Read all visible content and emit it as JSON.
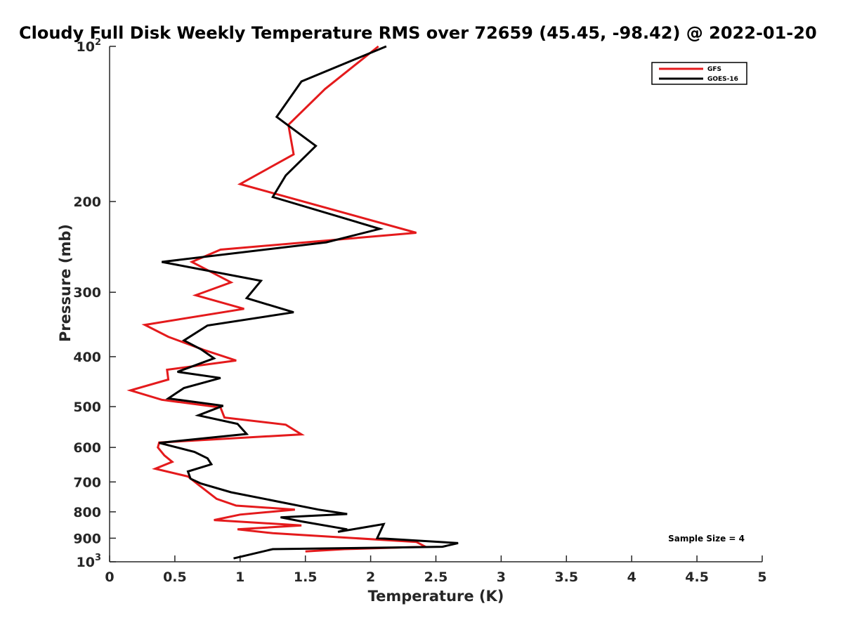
{
  "chart_data": {
    "type": "line",
    "title": "Cloudy Full Disk Weekly Temperature RMS over 72659 (45.45, -98.42) @ 2022-01-20",
    "xlabel": "Temperature (K)",
    "ylabel": "Pressure (mb)",
    "xlim": [
      0,
      5
    ],
    "ylim": [
      100,
      1000
    ],
    "y_scale": "log",
    "y_reversed": true,
    "grid": false,
    "legend_position": "top-right",
    "x_ticks": [
      "0",
      "0.5",
      "1",
      "1.5",
      "2",
      "2.5",
      "3",
      "3.5",
      "4",
      "4.5",
      "5"
    ],
    "x_tick_values": [
      0,
      0.5,
      1,
      1.5,
      2,
      2.5,
      3,
      3.5,
      4,
      4.5,
      5
    ],
    "y_ticks": [
      {
        "value": 100,
        "label": "10",
        "sup": "2"
      },
      {
        "value": 200,
        "label": "200",
        "sup": ""
      },
      {
        "value": 300,
        "label": "300",
        "sup": ""
      },
      {
        "value": 400,
        "label": "400",
        "sup": ""
      },
      {
        "value": 500,
        "label": "500",
        "sup": ""
      },
      {
        "value": 600,
        "label": "600",
        "sup": ""
      },
      {
        "value": 700,
        "label": "700",
        "sup": ""
      },
      {
        "value": 800,
        "label": "800",
        "sup": ""
      },
      {
        "value": 900,
        "label": "900",
        "sup": ""
      },
      {
        "value": 1000,
        "label": "10",
        "sup": "3"
      }
    ],
    "annotation": "Sample Size = 4",
    "series": [
      {
        "name": "GFS",
        "color": "#e41a1c",
        "points": [
          [
            2.06,
            100
          ],
          [
            1.65,
            121
          ],
          [
            1.37,
            142
          ],
          [
            1.41,
            162
          ],
          [
            1.0,
            185
          ],
          [
            2.35,
            230
          ],
          [
            0.85,
            248
          ],
          [
            0.63,
            262
          ],
          [
            0.93,
            287
          ],
          [
            0.66,
            304
          ],
          [
            1.03,
            323
          ],
          [
            0.27,
            347
          ],
          [
            0.45,
            366
          ],
          [
            0.72,
            388
          ],
          [
            0.97,
            407
          ],
          [
            0.44,
            424
          ],
          [
            0.45,
            443
          ],
          [
            0.16,
            465
          ],
          [
            0.4,
            485
          ],
          [
            0.85,
            502
          ],
          [
            0.88,
            525
          ],
          [
            1.35,
            542
          ],
          [
            1.47,
            566
          ],
          [
            0.38,
            587
          ],
          [
            0.37,
            600
          ],
          [
            0.42,
            622
          ],
          [
            0.48,
            640
          ],
          [
            0.35,
            660
          ],
          [
            0.6,
            683
          ],
          [
            0.69,
            712
          ],
          [
            0.82,
            755
          ],
          [
            0.97,
            778
          ],
          [
            1.42,
            792
          ],
          [
            1.0,
            810
          ],
          [
            0.8,
            830
          ],
          [
            1.47,
            850
          ],
          [
            0.98,
            865
          ],
          [
            1.25,
            880
          ],
          [
            2.35,
            915
          ],
          [
            2.42,
            935
          ],
          [
            1.8,
            945
          ],
          [
            1.5,
            955
          ]
        ]
      },
      {
        "name": "GOES-16",
        "color": "#000000",
        "points": [
          [
            2.12,
            100
          ],
          [
            1.47,
            117
          ],
          [
            1.28,
            137
          ],
          [
            1.58,
            156
          ],
          [
            1.35,
            178
          ],
          [
            1.25,
            196
          ],
          [
            2.07,
            226
          ],
          [
            1.66,
            240
          ],
          [
            0.4,
            262
          ],
          [
            1.16,
            285
          ],
          [
            1.05,
            308
          ],
          [
            1.41,
            328
          ],
          [
            0.75,
            348
          ],
          [
            0.57,
            372
          ],
          [
            0.7,
            387
          ],
          [
            0.8,
            403
          ],
          [
            0.52,
            428
          ],
          [
            0.85,
            440
          ],
          [
            0.57,
            460
          ],
          [
            0.45,
            482
          ],
          [
            0.87,
            498
          ],
          [
            0.68,
            520
          ],
          [
            0.98,
            540
          ],
          [
            1.05,
            565
          ],
          [
            0.38,
            588
          ],
          [
            0.65,
            612
          ],
          [
            0.75,
            630
          ],
          [
            0.78,
            647
          ],
          [
            0.6,
            668
          ],
          [
            0.62,
            690
          ],
          [
            0.7,
            705
          ],
          [
            0.93,
            733
          ],
          [
            1.3,
            765
          ],
          [
            1.6,
            792
          ],
          [
            1.82,
            808
          ],
          [
            1.31,
            820
          ],
          [
            1.47,
            835
          ],
          [
            1.82,
            865
          ],
          [
            1.75,
            875
          ],
          [
            2.1,
            845
          ],
          [
            2.05,
            900
          ],
          [
            2.67,
            920
          ],
          [
            2.55,
            935
          ],
          [
            2.2,
            938
          ],
          [
            1.25,
            945
          ],
          [
            0.95,
            985
          ]
        ]
      }
    ]
  }
}
